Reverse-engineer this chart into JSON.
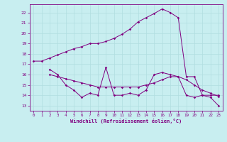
{
  "xlabel": "Windchill (Refroidissement éolien,°C)",
  "bg_color": "#c8eef0",
  "line_color": "#800080",
  "grid_color": "#b0dde0",
  "xlim": [
    -0.5,
    23.5
  ],
  "ylim": [
    12.5,
    22.8
  ],
  "yticks": [
    13,
    14,
    15,
    16,
    17,
    18,
    19,
    20,
    21,
    22
  ],
  "xticks": [
    0,
    1,
    2,
    3,
    4,
    5,
    6,
    7,
    8,
    9,
    10,
    11,
    12,
    13,
    14,
    15,
    16,
    17,
    18,
    19,
    20,
    21,
    22,
    23
  ],
  "line1_x": [
    0,
    1,
    2,
    3,
    4,
    5,
    6,
    7,
    8,
    9,
    10,
    11,
    12,
    13,
    14,
    15,
    16,
    17,
    18,
    19,
    20,
    21,
    22,
    23
  ],
  "line1_y": [
    17.3,
    17.3,
    17.6,
    17.9,
    18.2,
    18.5,
    18.7,
    19.0,
    19.0,
    19.2,
    19.5,
    19.9,
    20.4,
    21.1,
    21.5,
    21.9,
    22.35,
    22.0,
    21.5,
    15.8,
    15.8,
    14.0,
    14.0,
    14.0
  ],
  "line2_x": [
    2,
    3,
    4,
    5,
    6,
    7,
    8,
    9,
    10,
    11,
    12,
    13,
    14,
    15,
    16,
    17,
    18,
    19,
    20,
    21,
    22,
    23
  ],
  "line2_y": [
    16.5,
    16.0,
    15.0,
    14.5,
    13.8,
    14.2,
    14.0,
    16.7,
    14.0,
    14.0,
    14.2,
    14.0,
    14.5,
    16.0,
    16.2,
    16.0,
    15.8,
    14.0,
    13.8,
    14.0,
    13.8,
    13.0
  ],
  "line3_x": [
    2,
    3,
    4,
    5,
    6,
    7,
    8,
    9,
    10,
    11,
    12,
    13,
    14,
    15,
    16,
    17,
    18,
    19,
    20,
    21,
    22,
    23
  ],
  "line3_y": [
    16.0,
    15.8,
    15.6,
    15.4,
    15.2,
    15.0,
    14.8,
    14.8,
    14.8,
    14.8,
    14.8,
    14.8,
    15.0,
    15.2,
    15.5,
    15.8,
    15.8,
    15.5,
    15.0,
    14.5,
    14.2,
    13.9
  ]
}
